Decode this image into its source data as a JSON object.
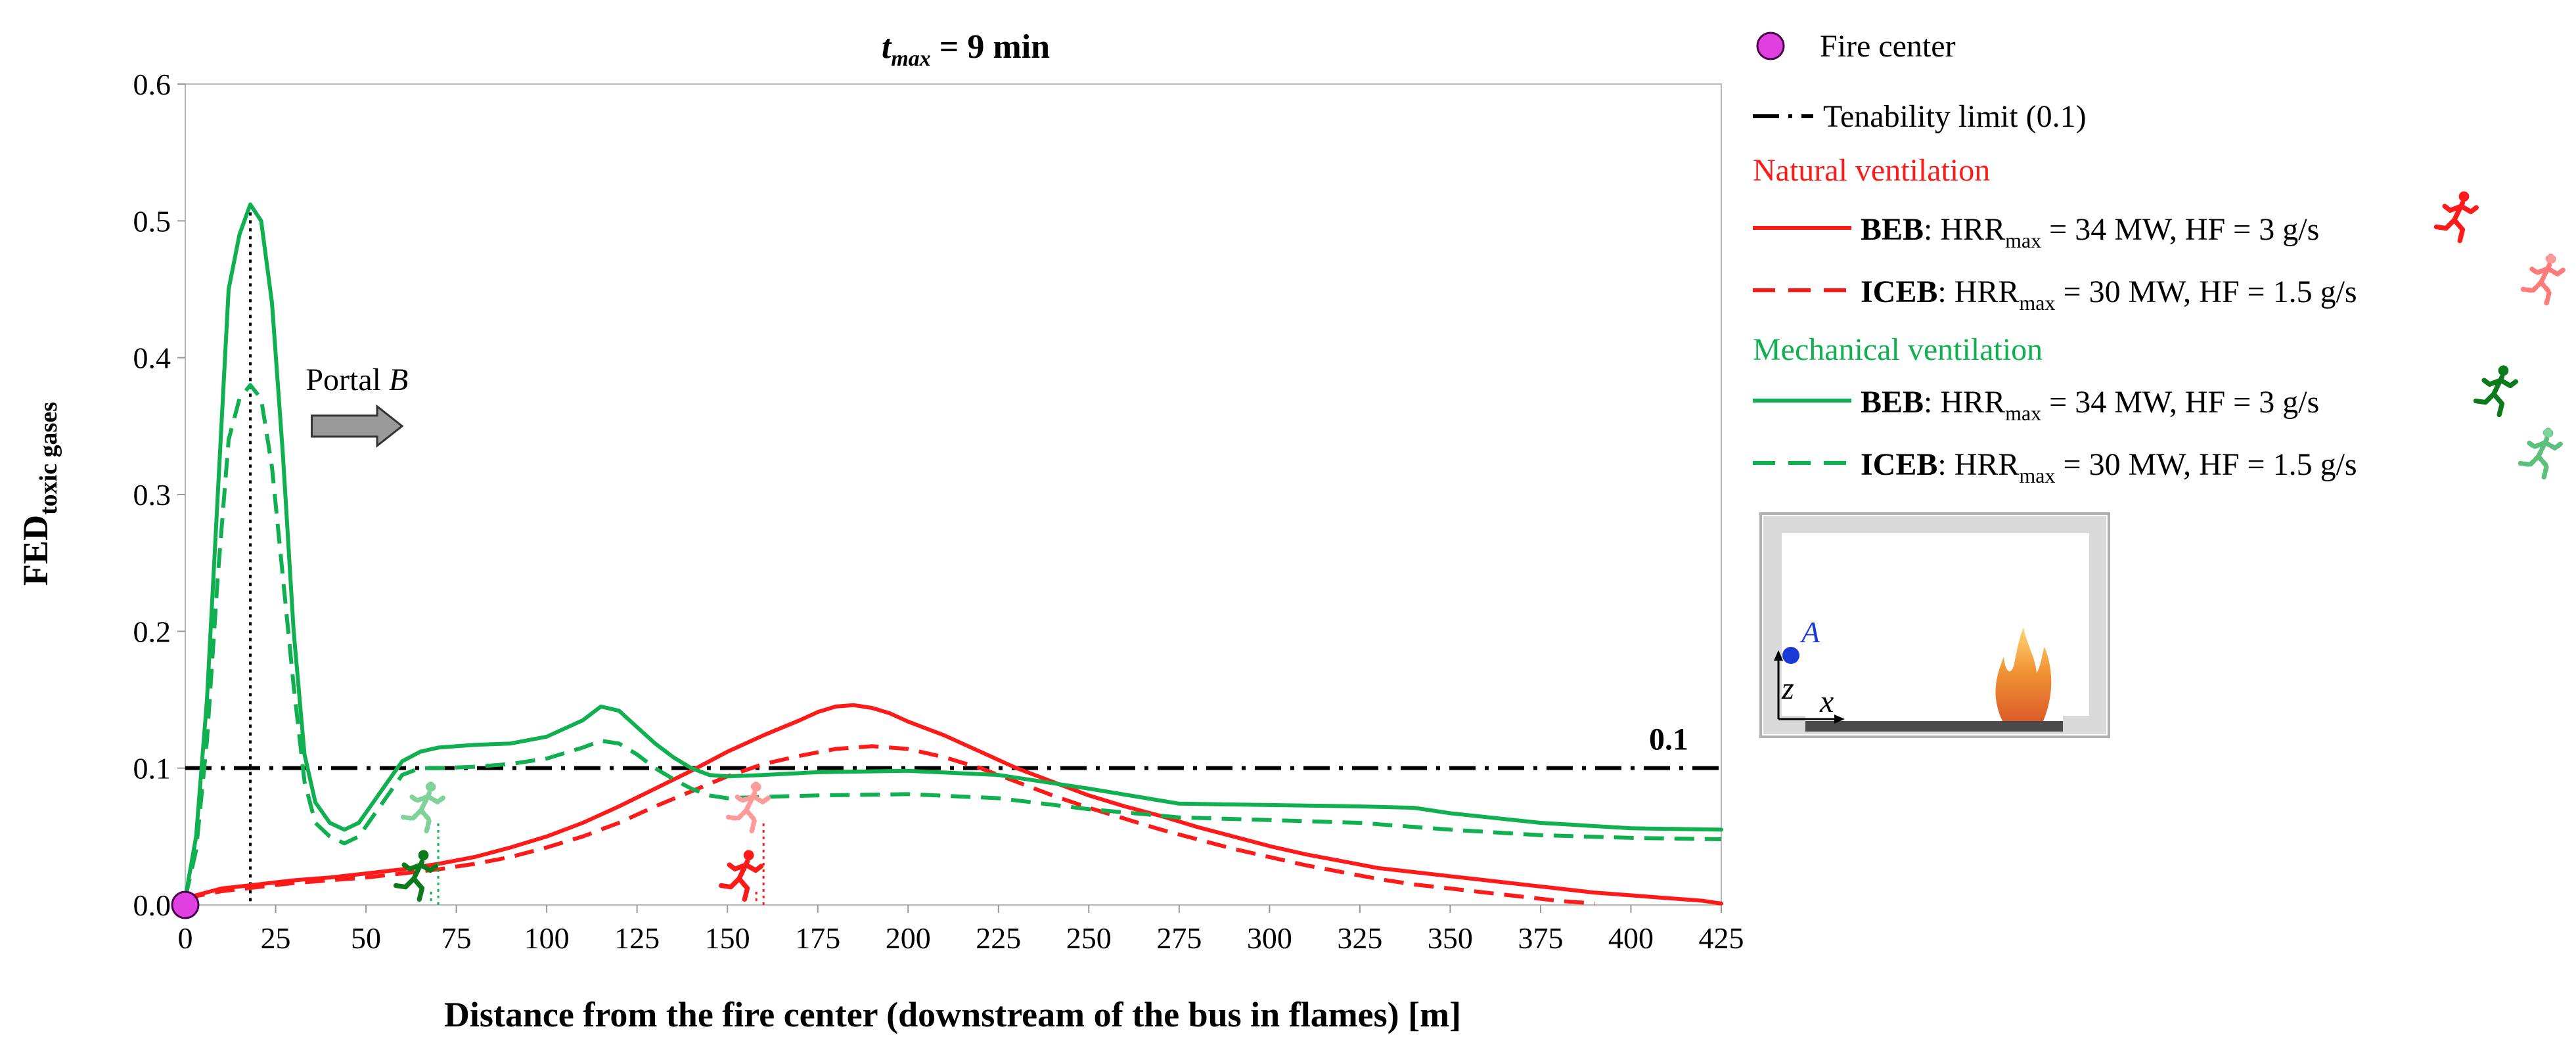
{
  "chart_data": {
    "type": "line",
    "title_prefix": "t",
    "title_sub": "max",
    "title_value": " = 9 min",
    "xlabel": "Distance from the fire center (downstream of the bus in flames) [m]",
    "ylabel_main": "FED",
    "ylabel_sub": "toxic gases",
    "xlim": [
      0,
      425
    ],
    "ylim": [
      0,
      0.6
    ],
    "xticks": [
      0,
      25,
      50,
      75,
      100,
      125,
      150,
      175,
      200,
      225,
      250,
      275,
      300,
      325,
      350,
      375,
      400,
      425
    ],
    "xtick_labels": [
      "0",
      "25",
      "50",
      "75",
      "100",
      "125",
      "150",
      "175",
      "200",
      "225",
      "250",
      "275",
      "300",
      "325",
      "350",
      "375",
      "400",
      "425"
    ],
    "yticks": [
      0,
      0.1,
      0.2,
      0.3,
      0.4,
      0.5,
      0.6
    ],
    "ytick_labels": [
      "0.0",
      "0.1",
      "0.2",
      "0.3",
      "0.4",
      "0.5",
      "0.6"
    ],
    "grid": false,
    "tenability": {
      "value": 0.1,
      "label": "0.1"
    },
    "annotation": {
      "label_text": "Portal ",
      "label_italic": "B",
      "arrow_x_start": 35,
      "arrow_x_end": 60,
      "arrow_y": 0.35
    },
    "peak_marker_x": 18,
    "fire_center": {
      "x": 0,
      "y": 0,
      "color": "#e040e0"
    },
    "series": [
      {
        "name": "Natural ventilation BEB",
        "color": "#ff1a1a",
        "dash": "solid",
        "x": [
          0,
          10,
          20,
          30,
          40,
          50,
          60,
          70,
          80,
          90,
          100,
          110,
          120,
          130,
          140,
          150,
          160,
          170,
          175,
          180,
          185,
          190,
          195,
          200,
          210,
          220,
          230,
          240,
          250,
          260,
          270,
          280,
          290,
          300,
          310,
          320,
          330,
          340,
          350,
          360,
          370,
          380,
          390,
          400,
          410,
          420,
          425
        ],
        "y": [
          0.005,
          0.012,
          0.015,
          0.018,
          0.02,
          0.023,
          0.026,
          0.03,
          0.035,
          0.042,
          0.05,
          0.06,
          0.072,
          0.085,
          0.098,
          0.112,
          0.124,
          0.135,
          0.141,
          0.145,
          0.146,
          0.144,
          0.14,
          0.134,
          0.124,
          0.112,
          0.1,
          0.09,
          0.08,
          0.072,
          0.065,
          0.057,
          0.05,
          0.043,
          0.037,
          0.032,
          0.027,
          0.024,
          0.021,
          0.018,
          0.015,
          0.012,
          0.009,
          0.007,
          0.005,
          0.003,
          0.001
        ]
      },
      {
        "name": "Natural ventilation ICEB",
        "color": "#ff1a1a",
        "dash": "dashed",
        "x": [
          0,
          10,
          20,
          30,
          40,
          50,
          60,
          70,
          80,
          90,
          100,
          110,
          120,
          130,
          140,
          150,
          160,
          170,
          180,
          190,
          200,
          210,
          220,
          230,
          240,
          250,
          260,
          270,
          280,
          290,
          300,
          310,
          320,
          330,
          340,
          350,
          360,
          370,
          380,
          390
        ],
        "y": [
          0.005,
          0.01,
          0.013,
          0.016,
          0.018,
          0.02,
          0.023,
          0.026,
          0.03,
          0.035,
          0.042,
          0.05,
          0.06,
          0.072,
          0.083,
          0.094,
          0.103,
          0.109,
          0.114,
          0.116,
          0.114,
          0.108,
          0.1,
          0.09,
          0.08,
          0.071,
          0.063,
          0.055,
          0.048,
          0.041,
          0.035,
          0.029,
          0.024,
          0.019,
          0.015,
          0.012,
          0.009,
          0.006,
          0.003,
          0.001
        ]
      },
      {
        "name": "Mechanical ventilation BEB",
        "color": "#10b050",
        "dash": "solid",
        "x": [
          0,
          3,
          6,
          9,
          12,
          15,
          18,
          21,
          24,
          27,
          30,
          33,
          36,
          40,
          44,
          48,
          52,
          56,
          60,
          65,
          70,
          80,
          90,
          100,
          110,
          115,
          120,
          125,
          130,
          135,
          140,
          145,
          150,
          160,
          175,
          200,
          225,
          250,
          275,
          300,
          325,
          340,
          350,
          375,
          400,
          425
        ],
        "y": [
          0.005,
          0.05,
          0.15,
          0.3,
          0.45,
          0.49,
          0.512,
          0.5,
          0.44,
          0.33,
          0.2,
          0.11,
          0.075,
          0.06,
          0.055,
          0.06,
          0.075,
          0.09,
          0.105,
          0.112,
          0.115,
          0.117,
          0.118,
          0.123,
          0.135,
          0.145,
          0.142,
          0.13,
          0.118,
          0.108,
          0.1,
          0.095,
          0.094,
          0.095,
          0.097,
          0.098,
          0.095,
          0.085,
          0.074,
          0.073,
          0.072,
          0.071,
          0.067,
          0.06,
          0.056,
          0.055
        ]
      },
      {
        "name": "Mechanical ventilation ICEB",
        "color": "#10b050",
        "dash": "dashed",
        "x": [
          0,
          3,
          6,
          9,
          12,
          15,
          18,
          21,
          24,
          27,
          30,
          33,
          36,
          40,
          44,
          48,
          52,
          56,
          60,
          65,
          70,
          80,
          90,
          100,
          110,
          115,
          120,
          125,
          130,
          135,
          140,
          145,
          150,
          160,
          175,
          200,
          225,
          250,
          275,
          300,
          325,
          350,
          375,
          400,
          425
        ],
        "y": [
          0.005,
          0.04,
          0.12,
          0.24,
          0.34,
          0.37,
          0.38,
          0.37,
          0.32,
          0.24,
          0.16,
          0.09,
          0.06,
          0.05,
          0.045,
          0.05,
          0.065,
          0.08,
          0.095,
          0.1,
          0.1,
          0.101,
          0.103,
          0.107,
          0.115,
          0.12,
          0.118,
          0.11,
          0.1,
          0.092,
          0.085,
          0.08,
          0.078,
          0.079,
          0.08,
          0.081,
          0.078,
          0.07,
          0.064,
          0.062,
          0.06,
          0.055,
          0.051,
          0.049,
          0.048
        ]
      }
    ],
    "evacuee_markers": [
      {
        "series": "Mechanical ventilation BEB",
        "x": 68,
        "y": 0.0,
        "color": "#10b050",
        "style": "solid"
      },
      {
        "series": "Mechanical ventilation ICEB",
        "x": 70,
        "y": 0.05,
        "color": "#10b050",
        "style": "faded"
      },
      {
        "series": "Natural ventilation BEB",
        "x": 158,
        "y": 0.0,
        "color": "#ff1a1a",
        "style": "solid"
      },
      {
        "series": "Natural ventilation ICEB",
        "x": 160,
        "y": 0.05,
        "color": "#ff1a1a",
        "style": "faded"
      }
    ]
  },
  "legend": {
    "fire_center_label": "Fire center",
    "tenability_label": "Tenability limit (0.1)",
    "groups": [
      {
        "title": "Natural ventilation",
        "color": "#ff1a1a",
        "entries": [
          {
            "bold": "BEB",
            "rest_pre": ": HRR",
            "sub": "max",
            "rest_post": " = 34 MW, HF = 3 g/s",
            "dash": "solid",
            "icon_style": "solid"
          },
          {
            "bold": "ICEB",
            "rest_pre": ": HRR",
            "sub": "max",
            "rest_post": " = 30 MW, HF = 1.5 g/s",
            "dash": "dashed",
            "icon_style": "faded"
          }
        ]
      },
      {
        "title": "Mechanical ventilation",
        "color": "#10b050",
        "entries": [
          {
            "bold": "BEB",
            "rest_pre": ": HRR",
            "sub": "max",
            "rest_post": " = 34 MW, HF = 3 g/s",
            "dash": "solid",
            "icon_style": "solid"
          },
          {
            "bold": "ICEB",
            "rest_pre": ": HRR",
            "sub": "max",
            "rest_post": " = 30 MW, HF = 1.5 g/s",
            "dash": "dashed",
            "icon_style": "faded"
          }
        ]
      }
    ]
  },
  "inset": {
    "point_label": "A",
    "axis_z": "z",
    "axis_x": "x",
    "point_color": "#1a3ad8"
  }
}
